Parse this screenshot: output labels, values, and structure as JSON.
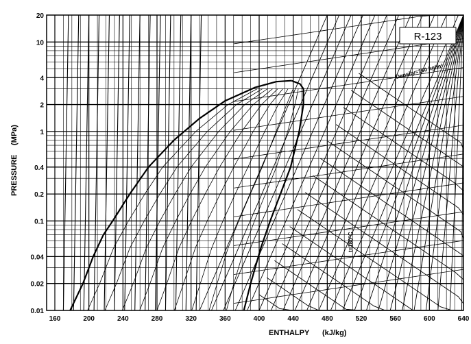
{
  "chart_data": {
    "type": "line",
    "title": "R-123",
    "xlabel": "ENTHALPY",
    "xunit": "(kJ/kg)",
    "ylabel": "PRESSURE",
    "yunit": "(MPa)",
    "xlim": [
      160,
      640
    ],
    "ylim": [
      0.01,
      20
    ],
    "yscale": "log",
    "grid": true,
    "x_ticks": [
      "160",
      "200",
      "240",
      "280",
      "320",
      "360",
      "400",
      "440",
      "480",
      "520",
      "560",
      "600",
      "640"
    ],
    "y_ticks": [
      "0.01",
      "0.02",
      "0.04",
      "0.1",
      "0.2",
      "0.4",
      "1",
      "2",
      "4",
      "10",
      "20"
    ],
    "series": [
      {
        "kind": "saturated-liquid",
        "x": [
          178,
          193,
          205,
          217,
          228,
          248,
          270,
          300,
          330,
          360,
          395,
          420,
          438
        ],
        "y": [
          0.01,
          0.02,
          0.04,
          0.07,
          0.1,
          0.2,
          0.4,
          0.8,
          1.4,
          2.2,
          3.1,
          3.6,
          3.7
        ]
      },
      {
        "kind": "saturated-vapor",
        "x": [
          438,
          448,
          452,
          452,
          447,
          437,
          425,
          413,
          402,
          390,
          382
        ],
        "y": [
          3.7,
          3.4,
          3.0,
          2.0,
          1.0,
          0.4,
          0.2,
          0.1,
          0.05,
          0.02,
          0.01
        ]
      }
    ],
    "annotations": [
      "Density=160 kg/m³",
      "t=180°C"
    ],
    "colors": {
      "ink": "#000000",
      "background": "#ffffff"
    }
  }
}
